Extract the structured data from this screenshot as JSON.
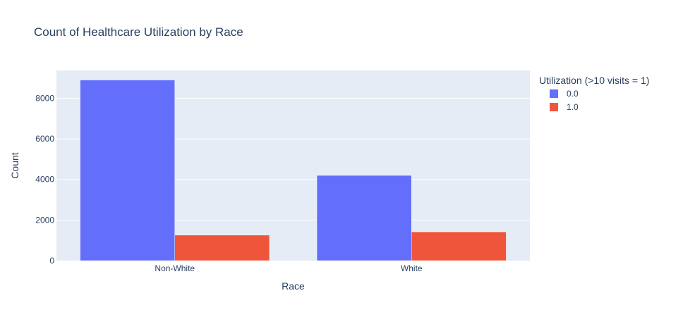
{
  "chart_data": {
    "type": "bar",
    "title": "Count of Healthcare Utilization by Race",
    "xlabel": "Race",
    "ylabel": "Count",
    "categories": [
      "Non-White",
      "White"
    ],
    "series": [
      {
        "name": "0.0",
        "values": [
          8900,
          4200
        ],
        "color": "#636efa"
      },
      {
        "name": "1.0",
        "values": [
          1260,
          1420
        ],
        "color": "#ef553b"
      }
    ],
    "ylim": [
      0,
      9370
    ],
    "yticks": [
      0,
      2000,
      4000,
      6000,
      8000
    ],
    "legend": {
      "title": "Utilization (>10 visits = 1)",
      "position": "top-right"
    },
    "grid": true,
    "barmode": "group",
    "plot_bgcolor": "#e5ecf6"
  }
}
